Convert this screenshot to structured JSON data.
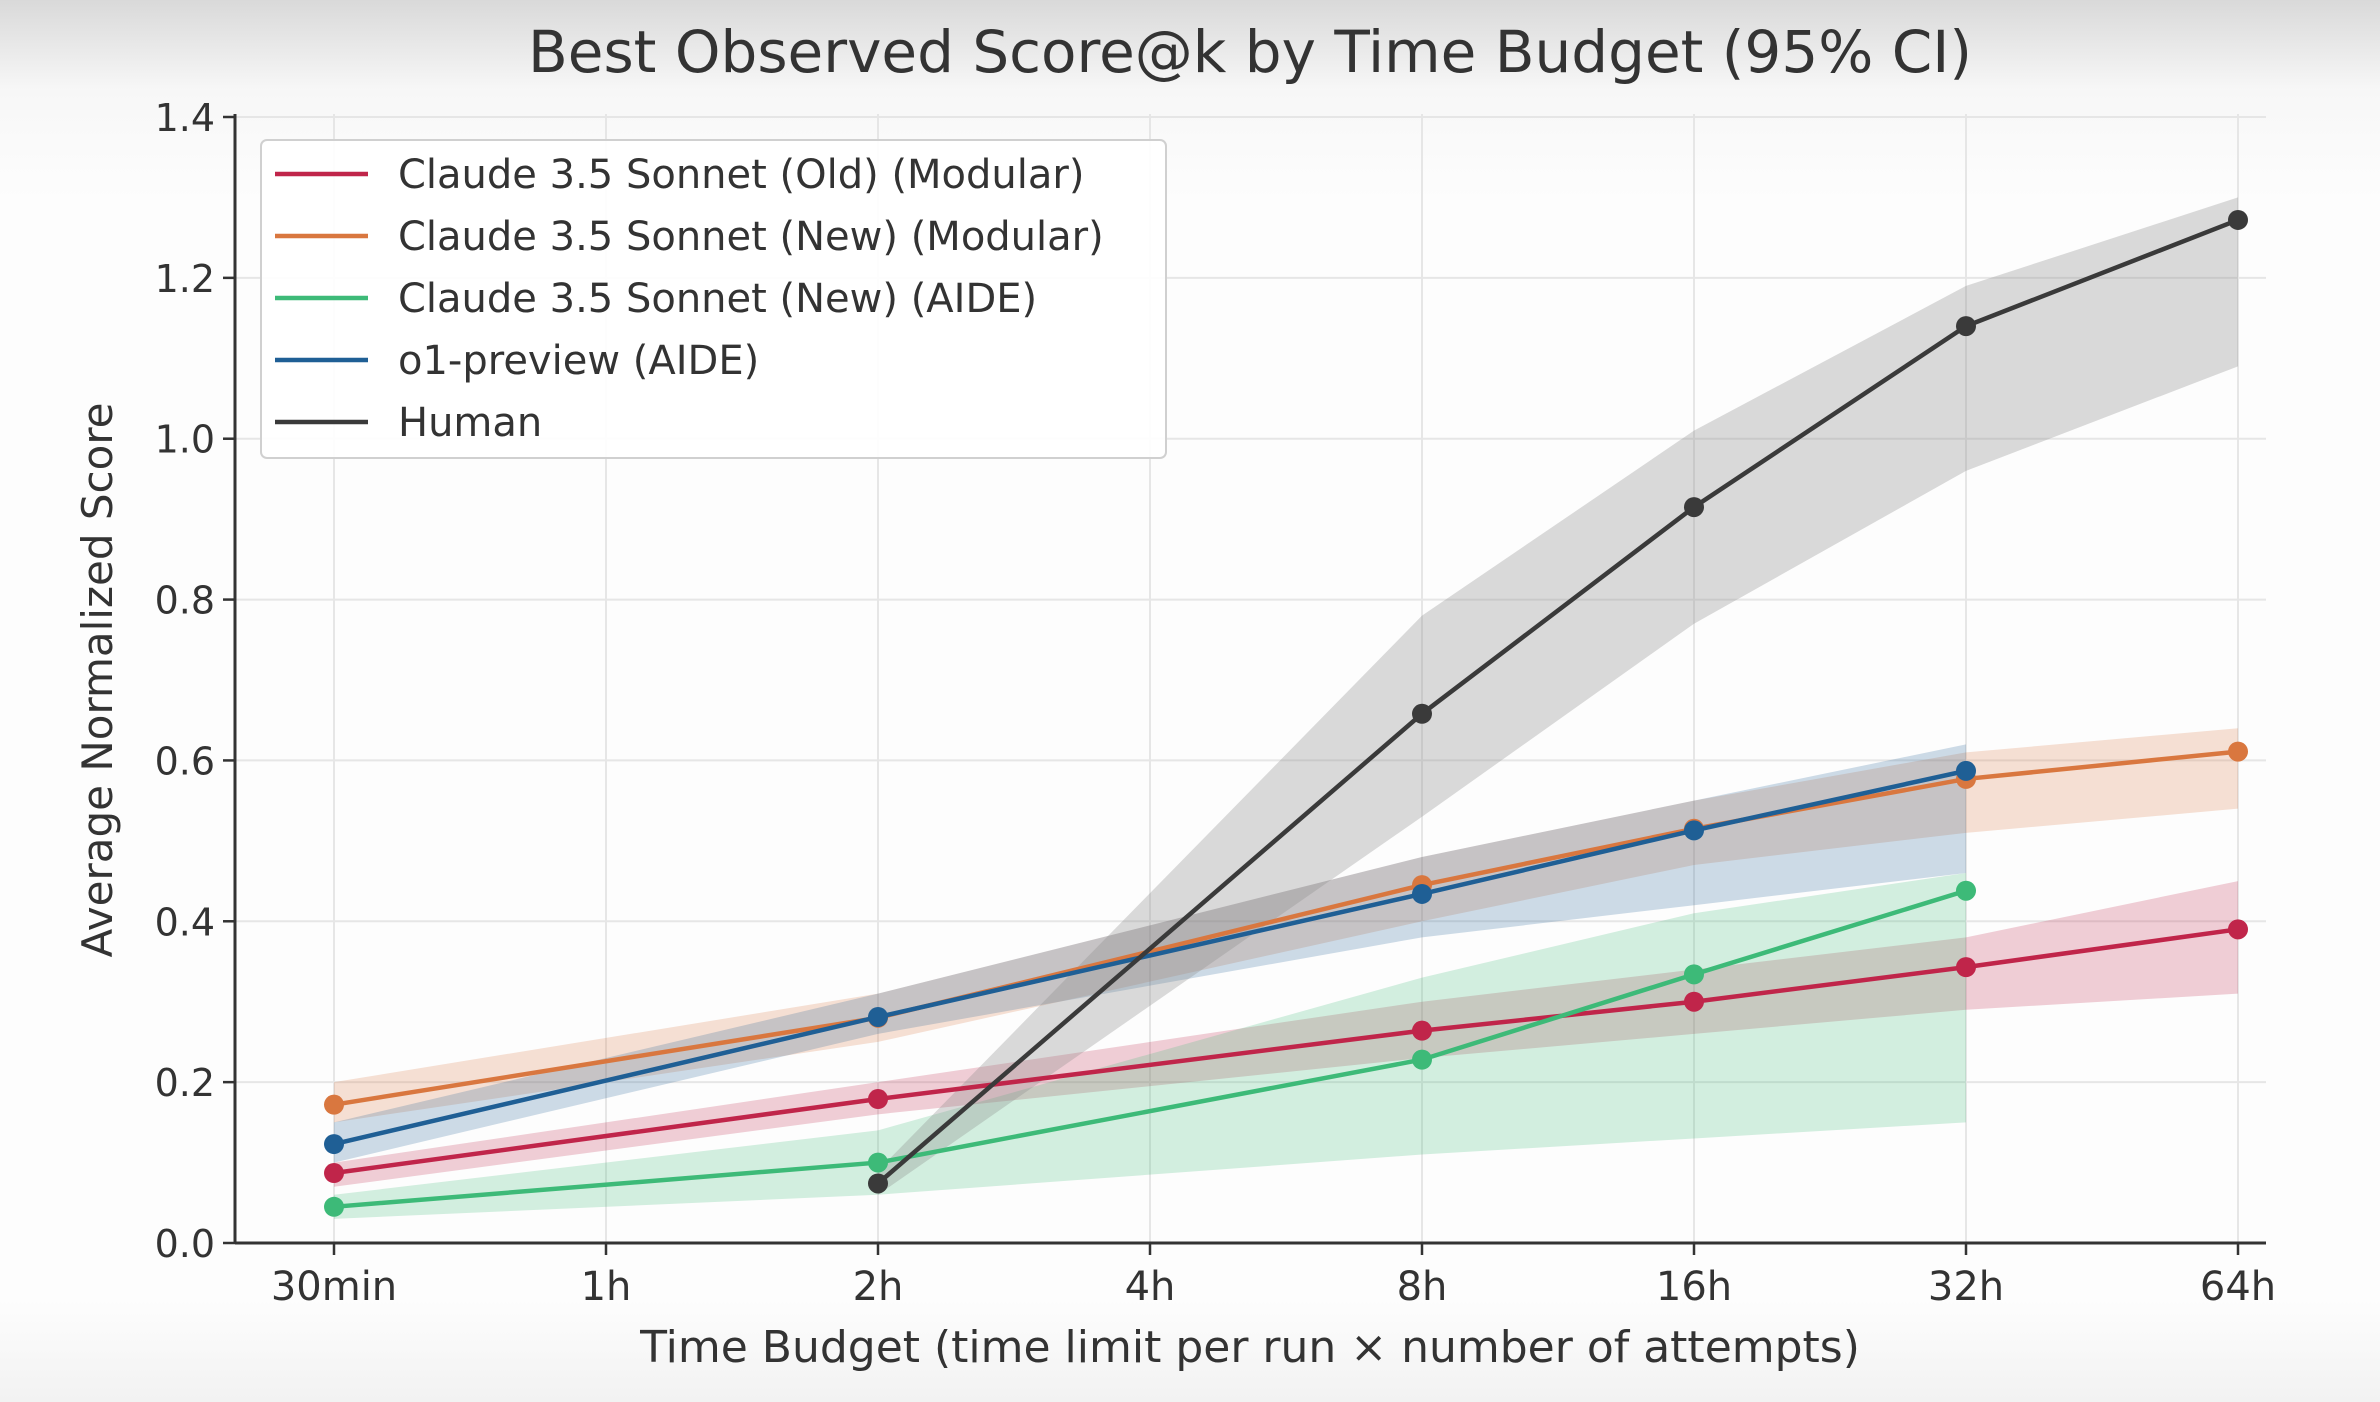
{
  "chart_data": {
    "type": "line",
    "title": "Best Observed Score@k by Time Budget (95% CI)",
    "xlabel": "Time Budget (time limit per run × number of attempts)",
    "ylabel": "Average Normalized Score",
    "categories": [
      "30min",
      "1h",
      "2h",
      "4h",
      "8h",
      "16h",
      "32h",
      "64h"
    ],
    "ylim": [
      0,
      1.4
    ],
    "yticks": [
      "0.0",
      "0.2",
      "0.4",
      "0.6",
      "0.8",
      "1.0",
      "1.2",
      "1.4"
    ],
    "grid": true,
    "legend_position": "top-left",
    "series": [
      {
        "name": "Claude 3.5 Sonnet (Old) (Modular)",
        "color": "#c0254a",
        "x": [
          "30min",
          "2h",
          "8h",
          "16h",
          "32h",
          "64h"
        ],
        "values": [
          0.087,
          0.179,
          0.264,
          0.3,
          0.343,
          0.39
        ],
        "ci_low": [
          0.07,
          0.16,
          0.23,
          0.26,
          0.29,
          0.31
        ],
        "ci_high": [
          0.1,
          0.2,
          0.3,
          0.34,
          0.38,
          0.45
        ]
      },
      {
        "name": "Claude 3.5 Sonnet (New) (Modular)",
        "color": "#d9773f",
        "x": [
          "30min",
          "2h",
          "8h",
          "16h",
          "32h",
          "64h"
        ],
        "values": [
          0.172,
          0.28,
          0.445,
          0.515,
          0.577,
          0.611
        ],
        "ci_low": [
          0.15,
          0.25,
          0.4,
          0.47,
          0.51,
          0.54
        ],
        "ci_high": [
          0.2,
          0.31,
          0.48,
          0.55,
          0.61,
          0.64
        ]
      },
      {
        "name": "Claude 3.5 Sonnet (New) (AIDE)",
        "color": "#3dba78",
        "x": [
          "30min",
          "2h",
          "8h",
          "16h",
          "32h"
        ],
        "values": [
          0.045,
          0.1,
          0.228,
          0.334,
          0.438
        ],
        "ci_low": [
          0.03,
          0.06,
          0.11,
          0.13,
          0.15
        ],
        "ci_high": [
          0.06,
          0.14,
          0.33,
          0.41,
          0.46
        ]
      },
      {
        "name": "o1-preview (AIDE)",
        "color": "#1f5f95",
        "x": [
          "30min",
          "2h",
          "8h",
          "16h",
          "32h"
        ],
        "values": [
          0.123,
          0.281,
          0.434,
          0.513,
          0.587
        ],
        "ci_low": [
          0.1,
          0.26,
          0.38,
          0.42,
          0.46
        ],
        "ci_high": [
          0.15,
          0.31,
          0.48,
          0.55,
          0.62
        ]
      },
      {
        "name": "Human",
        "color": "#3a3a3a",
        "x": [
          "2h",
          "8h",
          "16h",
          "32h",
          "64h"
        ],
        "values": [
          0.074,
          0.658,
          0.915,
          1.14,
          1.272
        ],
        "ci_low": [
          0.06,
          0.53,
          0.77,
          0.96,
          1.09
        ],
        "ci_high": [
          0.09,
          0.78,
          1.01,
          1.19,
          1.3
        ]
      }
    ]
  }
}
